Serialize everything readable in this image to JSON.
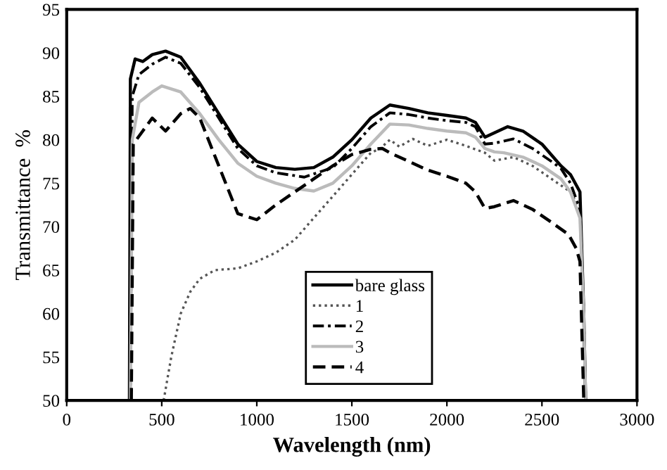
{
  "chart_data": {
    "type": "line",
    "xlabel": "Wavelength (nm)",
    "ylabel": "Transmittance  %",
    "xlim": [
      0,
      3000
    ],
    "xticks": [
      0,
      500,
      1000,
      1500,
      2000,
      2500,
      3000
    ],
    "ylim": [
      50,
      95
    ],
    "yticks": [
      50,
      55,
      60,
      65,
      70,
      75,
      80,
      85,
      90,
      95
    ],
    "grid": false,
    "legend": "bottom",
    "marker": "none",
    "series": [
      {
        "name": "bare glass",
        "color": "#000000",
        "line_style": "solid",
        "x": [
          330,
          335,
          360,
          400,
          450,
          520,
          600,
          700,
          800,
          900,
          1000,
          1100,
          1200,
          1300,
          1400,
          1500,
          1600,
          1700,
          1800,
          1900,
          2000,
          2100,
          2150,
          2200,
          2250,
          2320,
          2400,
          2500,
          2600,
          2650,
          2700,
          2720,
          2730
        ],
        "values": [
          50,
          87,
          89.3,
          89,
          89.8,
          90.2,
          89.5,
          86.5,
          83,
          79.5,
          77.5,
          76.8,
          76.6,
          76.8,
          78,
          80,
          82.5,
          84,
          83.6,
          83.1,
          82.8,
          82.5,
          82,
          80.3,
          80.8,
          81.5,
          81,
          79.5,
          77,
          76,
          74,
          60,
          50
        ]
      },
      {
        "name": "1",
        "color": "#555555",
        "line_style": "dotted",
        "x": [
          510,
          550,
          600,
          650,
          700,
          780,
          900,
          1000,
          1100,
          1200,
          1300,
          1400,
          1500,
          1600,
          1650,
          1700,
          1750,
          1820,
          1900,
          2000,
          2100,
          2200,
          2250,
          2350,
          2450,
          2550,
          2650,
          2700,
          2720,
          2730
        ],
        "values": [
          50,
          55,
          60,
          62.5,
          64,
          65,
          65.2,
          66,
          67,
          68.5,
          71,
          73.5,
          76,
          78.5,
          79,
          80,
          79.2,
          80.1,
          79.3,
          80,
          79.3,
          78.5,
          77.6,
          78,
          77,
          75.5,
          74,
          72,
          60,
          50
        ]
      },
      {
        "name": "2",
        "color": "#000000",
        "line_style": "dashdot",
        "x": [
          335,
          345,
          380,
          450,
          520,
          600,
          700,
          800,
          900,
          1000,
          1100,
          1250,
          1400,
          1500,
          1600,
          1700,
          1800,
          1900,
          2000,
          2100,
          2150,
          2200,
          2250,
          2350,
          2450,
          2550,
          2600,
          2650,
          2700,
          2720,
          2730
        ],
        "values": [
          50,
          85,
          87.5,
          88.7,
          89.5,
          88.8,
          86,
          82.5,
          79,
          77,
          76.2,
          75.7,
          76.8,
          79,
          81.5,
          83.1,
          82.9,
          82.5,
          82.2,
          82,
          81.5,
          79.5,
          79.6,
          80.1,
          79,
          77.5,
          76.7,
          75,
          72,
          60,
          50
        ]
      },
      {
        "name": "3",
        "color": "#bbbbbb",
        "line_style": "solid",
        "x": [
          335,
          345,
          380,
          450,
          500,
          600,
          700,
          800,
          900,
          1000,
          1100,
          1200,
          1300,
          1400,
          1500,
          1600,
          1700,
          1800,
          1900,
          2000,
          2100,
          2150,
          2200,
          2250,
          2300,
          2400,
          2500,
          2600,
          2650,
          2700,
          2720,
          2730
        ],
        "values": [
          50,
          80,
          84.3,
          85.5,
          86.2,
          85.5,
          83,
          80,
          77.3,
          75.8,
          75,
          74.4,
          74.1,
          75,
          77,
          79.5,
          81.8,
          81.7,
          81.3,
          81,
          80.8,
          80.3,
          79,
          78.6,
          78.5,
          78,
          77,
          75.5,
          74,
          71,
          60,
          50
        ]
      },
      {
        "name": "4",
        "color": "#000000",
        "line_style": "dashed",
        "x": [
          340,
          350,
          400,
          450,
          520,
          600,
          650,
          700,
          800,
          900,
          1000,
          1100,
          1200,
          1300,
          1400,
          1500,
          1600,
          1660,
          1700,
          1800,
          1900,
          2000,
          2100,
          2150,
          2200,
          2250,
          2350,
          2450,
          2550,
          2640,
          2680,
          2700,
          2720
        ],
        "values": [
          50,
          79.5,
          81,
          82.5,
          81,
          83,
          83.6,
          82.5,
          77,
          71.5,
          70.8,
          72.5,
          74,
          75.5,
          77,
          78.3,
          78.9,
          79,
          78.5,
          77.5,
          76.5,
          75.8,
          75,
          74,
          72.1,
          72.3,
          73,
          72,
          70.5,
          69.1,
          67.5,
          66,
          50
        ]
      }
    ]
  }
}
